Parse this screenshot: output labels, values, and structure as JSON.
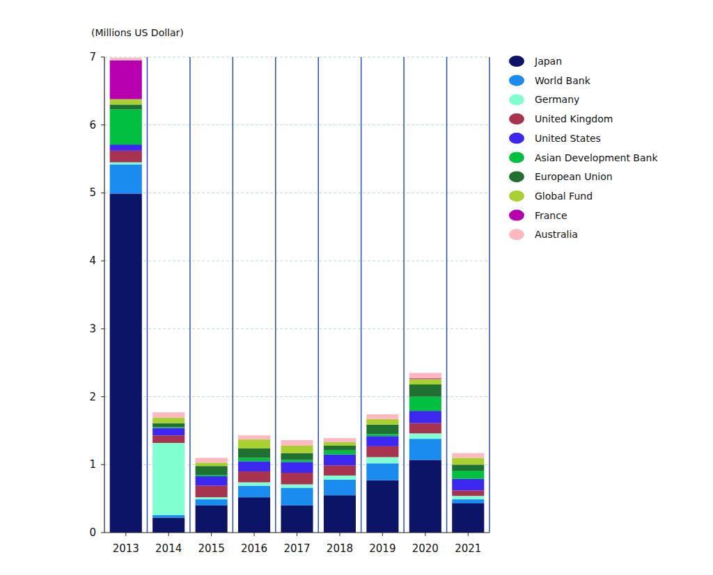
{
  "chart_data": {
    "type": "bar",
    "stacked": true,
    "grid": true,
    "legend": "right",
    "y_label": "(Millions US Dollar)",
    "categories": [
      "2013",
      "2014",
      "2015",
      "2016",
      "2017",
      "2018",
      "2019",
      "2020",
      "2021"
    ],
    "ylim": [
      0,
      7
    ],
    "yticks": [
      0,
      1,
      2,
      3,
      4,
      5,
      6,
      7
    ],
    "series": [
      {
        "name": "Japan",
        "color": "#0c1468",
        "values": [
          4.99,
          0.22,
          0.4,
          0.52,
          0.4,
          0.55,
          0.77,
          1.07,
          0.43
        ]
      },
      {
        "name": "World Bank",
        "color": "#1a8cf0",
        "values": [
          0.43,
          0.04,
          0.09,
          0.17,
          0.26,
          0.23,
          0.25,
          0.31,
          0.06
        ]
      },
      {
        "name": "Germany",
        "color": "#80ffd0",
        "values": [
          0.03,
          1.06,
          0.03,
          0.05,
          0.05,
          0.06,
          0.09,
          0.08,
          0.05
        ]
      },
      {
        "name": "United Kingdom",
        "color": "#a8334f",
        "values": [
          0.17,
          0.11,
          0.17,
          0.16,
          0.17,
          0.15,
          0.16,
          0.15,
          0.08
        ]
      },
      {
        "name": "United States",
        "color": "#3c28f0",
        "values": [
          0.09,
          0.11,
          0.14,
          0.15,
          0.16,
          0.16,
          0.15,
          0.18,
          0.17
        ]
      },
      {
        "name": "Asian Development Bank",
        "color": "#00c040",
        "values": [
          0.52,
          0.01,
          0.02,
          0.05,
          0.03,
          0.06,
          0.03,
          0.21,
          0.12
        ]
      },
      {
        "name": "European Union",
        "color": "#207032",
        "values": [
          0.07,
          0.06,
          0.13,
          0.14,
          0.1,
          0.07,
          0.14,
          0.18,
          0.09
        ]
      },
      {
        "name": "Global Fund",
        "color": "#a8d030",
        "values": [
          0.08,
          0.08,
          0.05,
          0.13,
          0.11,
          0.05,
          0.08,
          0.08,
          0.1
        ]
      },
      {
        "name": "France",
        "color": "#b800b0",
        "values": [
          0.57,
          0,
          0,
          0,
          0,
          0,
          0,
          0.01,
          0
        ]
      },
      {
        "name": "Australia",
        "color": "#ffb8c0",
        "values": [
          0.04,
          0.08,
          0.07,
          0.06,
          0.08,
          0.06,
          0.07,
          0.08,
          0.07
        ]
      }
    ]
  }
}
